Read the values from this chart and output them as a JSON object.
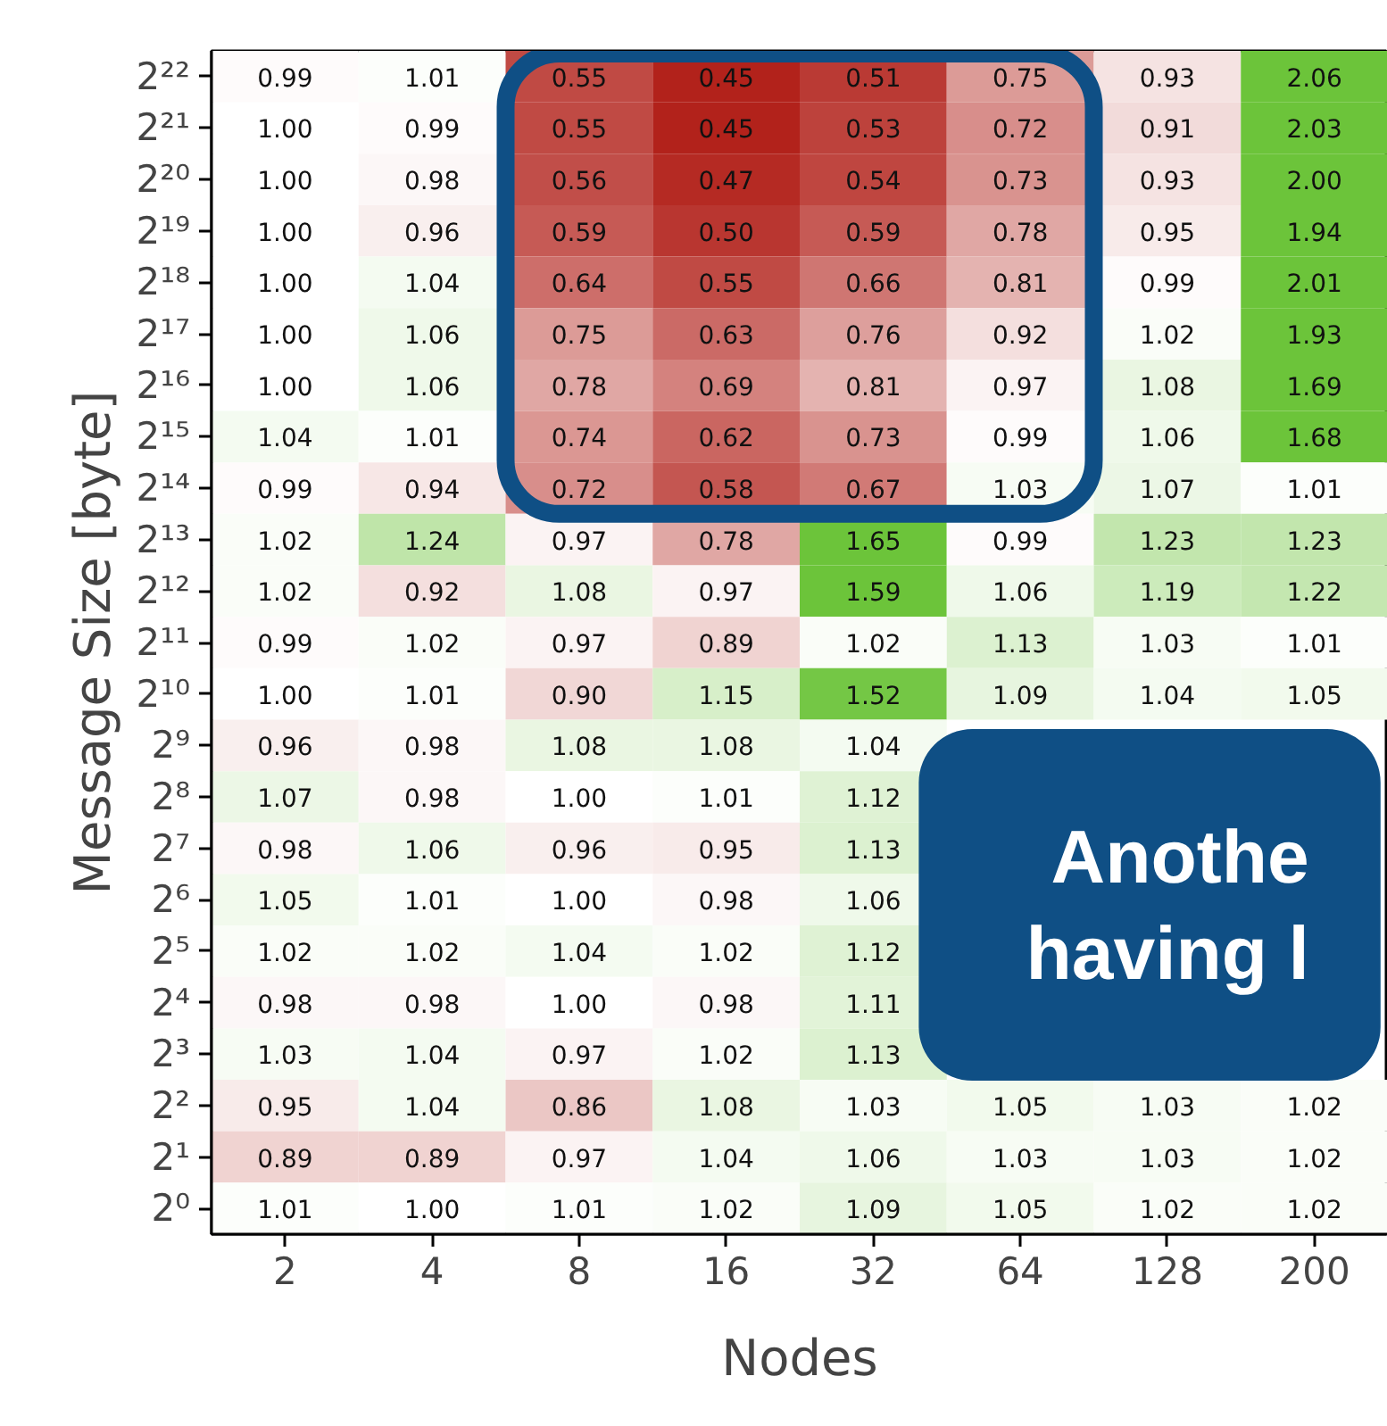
{
  "chart_data": {
    "type": "heatmap",
    "xlabel": "Nodes",
    "ylabel": "Message Size [byte]",
    "categories": [
      "2",
      "4",
      "8",
      "16",
      "32",
      "64",
      "128",
      "200"
    ],
    "y_categories": [
      "2²²",
      "2²¹",
      "2²⁰",
      "2¹⁹",
      "2¹⁸",
      "2¹⁷",
      "2¹⁶",
      "2¹⁵",
      "2¹⁴",
      "2¹³",
      "2¹²",
      "2¹¹",
      "2¹⁰",
      "2⁹",
      "2⁸",
      "2⁷",
      "2⁶",
      "2⁵",
      "2⁴",
      "2³",
      "2²",
      "2¹",
      "2⁰"
    ],
    "cells": [
      [
        0.99,
        1.01,
        0.55,
        0.45,
        0.51,
        0.75,
        0.93,
        2.06
      ],
      [
        1.0,
        0.99,
        0.55,
        0.45,
        0.53,
        0.72,
        0.91,
        2.03
      ],
      [
        1.0,
        0.98,
        0.56,
        0.47,
        0.54,
        0.73,
        0.93,
        2.0
      ],
      [
        1.0,
        0.96,
        0.59,
        0.5,
        0.59,
        0.78,
        0.95,
        1.94
      ],
      [
        1.0,
        1.04,
        0.64,
        0.55,
        0.66,
        0.81,
        0.99,
        2.01
      ],
      [
        1.0,
        1.06,
        0.75,
        0.63,
        0.76,
        0.92,
        1.02,
        1.93
      ],
      [
        1.0,
        1.06,
        0.78,
        0.69,
        0.81,
        0.97,
        1.08,
        1.69
      ],
      [
        1.04,
        1.01,
        0.74,
        0.62,
        0.73,
        0.99,
        1.06,
        1.68
      ],
      [
        0.99,
        0.94,
        0.72,
        0.58,
        0.67,
        1.03,
        1.07,
        1.01
      ],
      [
        1.02,
        1.24,
        0.97,
        0.78,
        1.65,
        0.99,
        1.23,
        1.23
      ],
      [
        1.02,
        0.92,
        1.08,
        0.97,
        1.59,
        1.06,
        1.19,
        1.22
      ],
      [
        0.99,
        1.02,
        0.97,
        0.89,
        1.02,
        1.13,
        1.03,
        1.01
      ],
      [
        1.0,
        1.01,
        0.9,
        1.15,
        1.52,
        1.09,
        1.04,
        1.05
      ],
      [
        0.96,
        0.98,
        1.08,
        1.08,
        1.04,
        null,
        null,
        null
      ],
      [
        1.07,
        0.98,
        1.0,
        1.01,
        1.12,
        null,
        null,
        null
      ],
      [
        0.98,
        1.06,
        0.96,
        0.95,
        1.13,
        null,
        null,
        null
      ],
      [
        1.05,
        1.01,
        1.0,
        0.98,
        1.06,
        null,
        null,
        null
      ],
      [
        1.02,
        1.02,
        1.04,
        1.02,
        1.12,
        null,
        null,
        null
      ],
      [
        0.98,
        0.98,
        1.0,
        0.98,
        1.11,
        null,
        null,
        null
      ],
      [
        1.03,
        1.04,
        0.97,
        1.02,
        1.13,
        null,
        null,
        null
      ],
      [
        0.95,
        1.04,
        0.86,
        1.08,
        1.03,
        1.05,
        1.03,
        1.02
      ],
      [
        0.89,
        0.89,
        0.97,
        1.04,
        1.06,
        1.03,
        1.03,
        1.02
      ],
      [
        1.01,
        1.0,
        1.01,
        1.02,
        1.09,
        1.05,
        1.02,
        1.02
      ]
    ],
    "cell_labels": [
      [
        "0.99",
        "1.01",
        "0.55",
        "0.45",
        "0.51",
        "0.75",
        "0.93",
        "2.06"
      ],
      [
        "1.00",
        "0.99",
        "0.55",
        "0.45",
        "0.53",
        "0.72",
        "0.91",
        "2.03"
      ],
      [
        "1.00",
        "0.98",
        "0.56",
        "0.47",
        "0.54",
        "0.73",
        "0.93",
        "2.00"
      ],
      [
        "1.00",
        "0.96",
        "0.59",
        "0.50",
        "0.59",
        "0.78",
        "0.95",
        "1.94"
      ],
      [
        "1.00",
        "1.04",
        "0.64",
        "0.55",
        "0.66",
        "0.81",
        "0.99",
        "2.01"
      ],
      [
        "1.00",
        "1.06",
        "0.75",
        "0.63",
        "0.76",
        "0.92",
        "1.02",
        "1.93"
      ],
      [
        "1.00",
        "1.06",
        "0.78",
        "0.69",
        "0.81",
        "0.97",
        "1.08",
        "1.69"
      ],
      [
        "1.04",
        "1.01",
        "0.74",
        "0.62",
        "0.73",
        "0.99",
        "1.06",
        "1.68"
      ],
      [
        "0.99",
        "0.94",
        "0.72",
        "0.58",
        "0.67",
        "1.03",
        "1.07",
        "1.01"
      ],
      [
        "1.02",
        "1.24",
        "0.97",
        "0.78",
        "1.65",
        "0.99",
        "1.23",
        "1.23"
      ],
      [
        "1.02",
        "0.92",
        "1.08",
        "0.97",
        "1.59",
        "1.06",
        "1.19",
        "1.22"
      ],
      [
        "0.99",
        "1.02",
        "0.97",
        "0.89",
        "1.02",
        "1.13",
        "1.03",
        "1.01"
      ],
      [
        "1.00",
        "1.01",
        "0.90",
        "1.15",
        "1.52",
        "1.09",
        "1.04",
        "1.05"
      ],
      [
        "0.96",
        "0.98",
        "1.08",
        "1.08",
        "1.04",
        null,
        null,
        null
      ],
      [
        "1.07",
        "0.98",
        "1.00",
        "1.01",
        "1.12",
        null,
        null,
        null
      ],
      [
        "0.98",
        "1.06",
        "0.96",
        "0.95",
        "1.13",
        null,
        null,
        null
      ],
      [
        "1.05",
        "1.01",
        "1.00",
        "0.98",
        "1.06",
        null,
        null,
        null
      ],
      [
        "1.02",
        "1.02",
        "1.04",
        "1.02",
        "1.12",
        null,
        null,
        null
      ],
      [
        "0.98",
        "0.98",
        "1.00",
        "0.98",
        "1.11",
        null,
        null,
        null
      ],
      [
        "1.03",
        "1.04",
        "0.97",
        "1.02",
        "1.13",
        null,
        null,
        null
      ],
      [
        "0.95",
        "1.04",
        "0.86",
        "1.08",
        "1.03",
        "1.05",
        "1.03",
        "1.02"
      ],
      [
        "0.89",
        "0.89",
        "0.97",
        "1.04",
        "1.06",
        "1.03",
        "1.03",
        "1.02"
      ],
      [
        "1.01",
        "1.00",
        "1.01",
        "1.02",
        "1.09",
        "1.05",
        "1.02",
        "1.02"
      ]
    ],
    "colors": [
      "#b2221b",
      "#ffffff",
      "#6cc43a"
    ],
    "annotations": [
      "Anothe",
      "having l"
    ]
  }
}
